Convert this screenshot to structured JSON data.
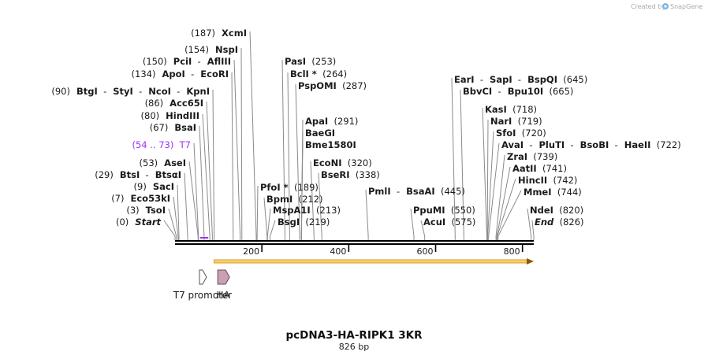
{
  "credit": {
    "prefix": "Created by",
    "brand": "SnapGene",
    "logo": "snapgene-logo-icon"
  },
  "plasmid": {
    "name": "pcDNA3-HA-RIPK1 3KR",
    "length_label": "826 bp",
    "length": 826
  },
  "axis": {
    "ticks": [
      200,
      400,
      600,
      800
    ]
  },
  "colors": {
    "backbone": "#000000",
    "leader": "#8a8a8a",
    "orf_fill": "#ffd166",
    "orf_stroke": "#c8870c",
    "orf_arrow": "#8a5a00",
    "primer": "#9b30ff",
    "ha_fill": "#c9a0b4",
    "promoter_fill": "#ffffff"
  },
  "sites": [
    {
      "pos": 0,
      "pieces": [
        "(0)",
        "Start"
      ],
      "styles": [
        "num",
        "ital"
      ]
    },
    {
      "pos": 3,
      "pieces": [
        "(3)",
        "TsoI"
      ],
      "styles": [
        "num",
        "name"
      ]
    },
    {
      "pos": 7,
      "pieces": [
        "(7)",
        "Eco53kI"
      ],
      "styles": [
        "num",
        "name"
      ]
    },
    {
      "pos": 9,
      "pieces": [
        "(9)",
        "SacI"
      ],
      "styles": [
        "num",
        "name"
      ]
    },
    {
      "pos": 29,
      "pieces": [
        "(29)",
        "BtsI",
        "-",
        "BtsαI"
      ],
      "styles": [
        "num",
        "name",
        "num",
        "name"
      ]
    },
    {
      "pos": 53,
      "pieces": [
        "(53)",
        "AseI"
      ],
      "styles": [
        "num",
        "name"
      ]
    },
    {
      "pos": 54,
      "pieces": [
        "(54 .. 73)",
        "T7"
      ],
      "styles": [
        "num",
        "num"
      ],
      "primer": true
    },
    {
      "pos": 67,
      "pieces": [
        "(67)",
        "BsaI"
      ],
      "styles": [
        "num",
        "name"
      ]
    },
    {
      "pos": 80,
      "pieces": [
        "(80)",
        "HindIII"
      ],
      "styles": [
        "num",
        "name"
      ]
    },
    {
      "pos": 86,
      "pieces": [
        "(86)",
        "Acc65I"
      ],
      "styles": [
        "num",
        "name"
      ]
    },
    {
      "pos": 90,
      "pieces": [
        "(90)",
        "BtgI",
        "-",
        "StyI",
        "-",
        "NcoI",
        "-",
        "KpnI"
      ],
      "styles": [
        "num",
        "name",
        "num",
        "name",
        "num",
        "name",
        "num",
        "name"
      ]
    },
    {
      "pos": 134,
      "pieces": [
        "(134)",
        "ApoI",
        "-",
        "EcoRI"
      ],
      "styles": [
        "num",
        "name",
        "num",
        "name"
      ]
    },
    {
      "pos": 150,
      "pieces": [
        "(150)",
        "PciI",
        "-",
        "AflIII"
      ],
      "styles": [
        "num",
        "name",
        "num",
        "name"
      ]
    },
    {
      "pos": 154,
      "pieces": [
        "(154)",
        "NspI"
      ],
      "styles": [
        "num",
        "name"
      ]
    },
    {
      "pos": 187,
      "pieces": [
        "(187)",
        "XcmI"
      ],
      "styles": [
        "num",
        "name"
      ]
    },
    {
      "pos": 189,
      "pieces": [
        "PfoI *",
        "(189)"
      ],
      "styles": [
        "name",
        "num"
      ]
    },
    {
      "pos": 212,
      "pieces": [
        "BpmI",
        "(212)"
      ],
      "styles": [
        "name",
        "num"
      ]
    },
    {
      "pos": 213,
      "pieces": [
        "MspA1I",
        "(213)"
      ],
      "styles": [
        "name",
        "num"
      ]
    },
    {
      "pos": 219,
      "pieces": [
        "BsgI",
        "(219)"
      ],
      "styles": [
        "name",
        "num"
      ]
    },
    {
      "pos": 253,
      "pieces": [
        "PasI",
        "(253)"
      ],
      "styles": [
        "name",
        "num"
      ]
    },
    {
      "pos": 264,
      "pieces": [
        "BclI *",
        "(264)"
      ],
      "styles": [
        "name",
        "num"
      ]
    },
    {
      "pos": 287,
      "pieces": [
        "PspOMI",
        "(287)"
      ],
      "styles": [
        "name",
        "num"
      ]
    },
    {
      "pos": 291,
      "pieces": [
        "ApaI",
        "(291)"
      ],
      "styles": [
        "name",
        "num"
      ]
    },
    {
      "pos": 291,
      "pieces": [
        "BaeGI"
      ],
      "styles": [
        "name"
      ]
    },
    {
      "pos": 291,
      "pieces": [
        "Bme1580I"
      ],
      "styles": [
        "name"
      ]
    },
    {
      "pos": 320,
      "pieces": [
        "EcoNI",
        "(320)"
      ],
      "styles": [
        "name",
        "num"
      ]
    },
    {
      "pos": 338,
      "pieces": [
        "BseRI",
        "(338)"
      ],
      "styles": [
        "name",
        "num"
      ]
    },
    {
      "pos": 445,
      "pieces": [
        "PmlI",
        "-",
        "BsaAI",
        "(445)"
      ],
      "styles": [
        "name",
        "num",
        "name",
        "num"
      ]
    },
    {
      "pos": 550,
      "pieces": [
        "PpuMI",
        "(550)"
      ],
      "styles": [
        "name",
        "num"
      ]
    },
    {
      "pos": 575,
      "pieces": [
        "AcuI",
        "(575)"
      ],
      "styles": [
        "name",
        "num"
      ]
    },
    {
      "pos": 645,
      "pieces": [
        "EarI",
        "-",
        "SapI",
        "-",
        "BspQI",
        "(645)"
      ],
      "styles": [
        "name",
        "num",
        "name",
        "num",
        "name",
        "num"
      ]
    },
    {
      "pos": 665,
      "pieces": [
        "BbvCI",
        "-",
        "Bpu10I",
        "(665)"
      ],
      "styles": [
        "name",
        "num",
        "name",
        "num"
      ]
    },
    {
      "pos": 718,
      "pieces": [
        "KasI",
        "(718)"
      ],
      "styles": [
        "name",
        "num"
      ]
    },
    {
      "pos": 719,
      "pieces": [
        "NarI",
        "(719)"
      ],
      "styles": [
        "name",
        "num"
      ]
    },
    {
      "pos": 720,
      "pieces": [
        "SfoI",
        "(720)"
      ],
      "styles": [
        "name",
        "num"
      ]
    },
    {
      "pos": 722,
      "pieces": [
        "AvaI",
        "-",
        "PluTI",
        "-",
        "BsoBI",
        "-",
        "HaeII",
        "(722)"
      ],
      "styles": [
        "name",
        "num",
        "name",
        "num",
        "name",
        "num",
        "name",
        "num"
      ]
    },
    {
      "pos": 739,
      "pieces": [
        "ZraI",
        "(739)"
      ],
      "styles": [
        "name",
        "num"
      ]
    },
    {
      "pos": 741,
      "pieces": [
        "AatII",
        "(741)"
      ],
      "styles": [
        "name",
        "num"
      ]
    },
    {
      "pos": 742,
      "pieces": [
        "HincII",
        "(742)"
      ],
      "styles": [
        "name",
        "num"
      ]
    },
    {
      "pos": 744,
      "pieces": [
        "MmeI",
        "(744)"
      ],
      "styles": [
        "name",
        "num"
      ]
    },
    {
      "pos": 820,
      "pieces": [
        "NdeI",
        "(820)"
      ],
      "styles": [
        "name",
        "num"
      ]
    },
    {
      "pos": 826,
      "pieces": [
        "End",
        "(826)"
      ],
      "styles": [
        "ital",
        "num"
      ]
    }
  ],
  "features": [
    {
      "name": "T7 promoter",
      "type": "promoter",
      "start": 54,
      "end": 73
    },
    {
      "name": "HA",
      "type": "tag",
      "start": 98,
      "end": 124
    }
  ],
  "orf": {
    "start": 90,
    "end": 826,
    "direction": "forward"
  }
}
